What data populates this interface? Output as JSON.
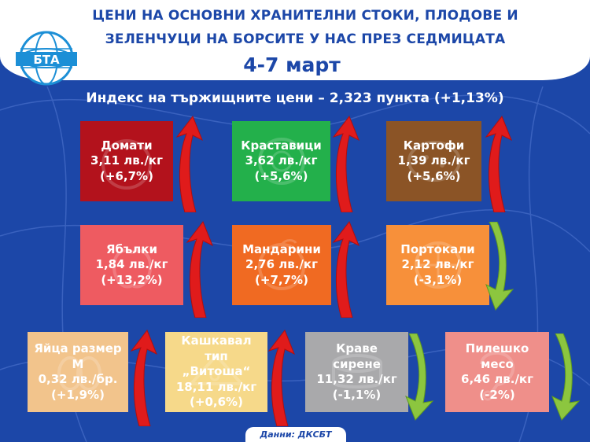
{
  "header": {
    "logo_text": "БТА",
    "title_line1": "ЦЕНИ НА ОСНОВНИ ХРАНИТЕЛНИ СТОКИ, ПЛОДОВЕ И",
    "title_line2": "ЗЕЛЕНЧУЦИ НА БОРСИТЕ У НАС ПРЕЗ СЕДМИЦАТА",
    "date": "4-7 март"
  },
  "index_line": "Индекс на тържищните цени – 2,323 пункта (+1,13%)",
  "colors": {
    "background": "#1c47a8",
    "arrow_up": "#e01b1b",
    "arrow_down": "#8cc63f"
  },
  "products": [
    {
      "name": "Домати",
      "price": "3,11 лв./кг",
      "change": "(+6,7%)",
      "trend": "up",
      "color": "#b3121c",
      "icon": "tomato-icon"
    },
    {
      "name": "Краставици",
      "price": "3,62 лв./кг",
      "change": "(+5,6%)",
      "trend": "up",
      "color": "#23b04b",
      "icon": "cucumber-icon"
    },
    {
      "name": "Картофи",
      "price": "1,39 лв./кг",
      "change": "(+5,6%)",
      "trend": "up",
      "color": "#8b5426",
      "icon": "potato-icon"
    },
    {
      "name": "Ябълки",
      "price": "1,84 лв./кг",
      "change": "(+13,2%)",
      "trend": "up",
      "color": "#ee5b61",
      "icon": "apple-icon"
    },
    {
      "name": "Мандарини",
      "price": "2,76 лв./кг",
      "change": "(+7,7%)",
      "trend": "up",
      "color": "#f06a22",
      "icon": "mandarin-icon"
    },
    {
      "name": "Портокали",
      "price": "2,12 лв./кг",
      "change": "(-3,1%)",
      "trend": "down",
      "color": "#f7903a",
      "icon": "orange-icon"
    },
    {
      "name_line1": "Яйца размер",
      "name_line2": "М",
      "price": "0,32 лв./бр.",
      "change": "(+1,9%)",
      "trend": "up",
      "color": "#f2c48c",
      "icon": "eggs-icon"
    },
    {
      "name_line1": "Кашкавал",
      "name_line2": "тип",
      "name_line3": "„Витоша“",
      "price": "18,11 лв./кг",
      "change": "(+0,6%)",
      "trend": "up",
      "color": "#f6d98a",
      "icon": "cheese-icon"
    },
    {
      "name_line1": "Краве",
      "name_line2": "сирене",
      "price": "11,32 лв./кг",
      "change": "(-1,1%)",
      "trend": "down",
      "color": "#a9a9ab",
      "icon": "white-cheese-icon"
    },
    {
      "name_line1": "Пилешко",
      "name_line2": "месо",
      "price": "6,46 лв./кг",
      "change": "(-2%)",
      "trend": "down",
      "color": "#ef8f8a",
      "icon": "chicken-icon"
    }
  ],
  "source": "Данни: ДКСБТ"
}
